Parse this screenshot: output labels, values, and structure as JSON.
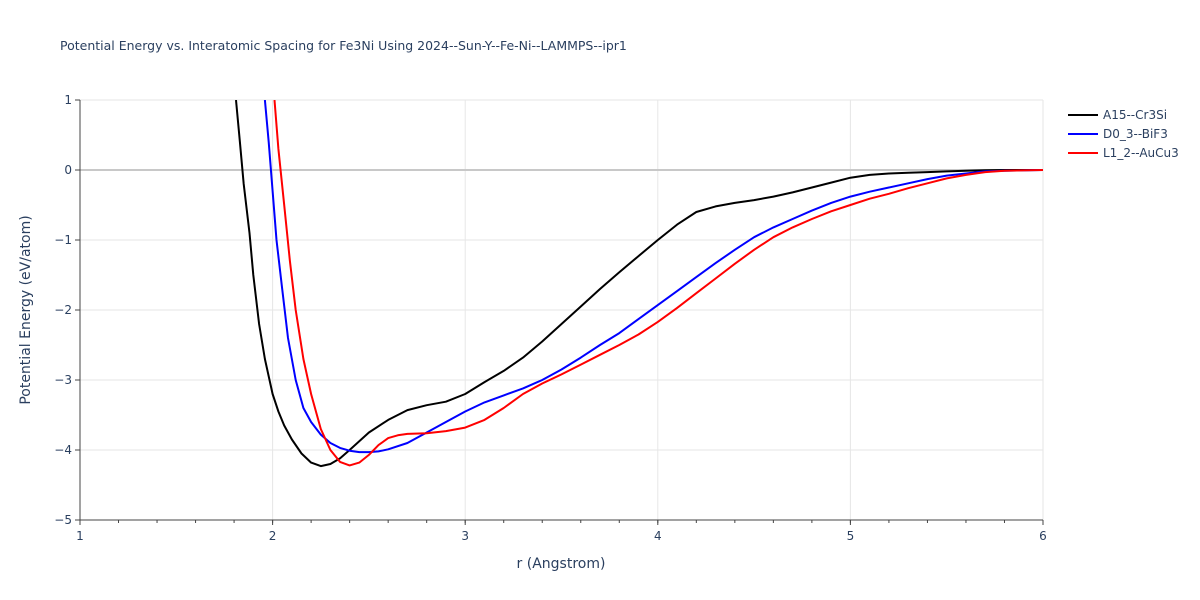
{
  "chart_data": {
    "type": "line",
    "title": "Potential Energy vs. Interatomic Spacing for Fe3Ni Using 2024--Sun-Y--Fe-Ni--LAMMPS--ipr1",
    "xlabel": "r (Angstrom)",
    "ylabel": "Potential Energy (eV/atom)",
    "xlim": [
      1,
      6
    ],
    "ylim": [
      -5,
      1
    ],
    "x_ticks": [
      1,
      2,
      3,
      4,
      5,
      6
    ],
    "x_tick_labels": [
      "1",
      "2",
      "3",
      "4",
      "5",
      "6"
    ],
    "y_ticks": [
      -5,
      -4,
      -3,
      -2,
      -1,
      0,
      1
    ],
    "y_tick_labels": [
      "−5",
      "−4",
      "−3",
      "−2",
      "−1",
      "0",
      "1"
    ],
    "grid": true,
    "legend_position": "top-right",
    "series": [
      {
        "name": "A15--Cr3Si",
        "color": "#000000",
        "points": [
          [
            1.81,
            1.0
          ],
          [
            1.83,
            0.4
          ],
          [
            1.85,
            -0.2
          ],
          [
            1.88,
            -0.9
          ],
          [
            1.9,
            -1.5
          ],
          [
            1.93,
            -2.2
          ],
          [
            1.96,
            -2.7
          ],
          [
            2.0,
            -3.2
          ],
          [
            2.03,
            -3.45
          ],
          [
            2.06,
            -3.65
          ],
          [
            2.1,
            -3.85
          ],
          [
            2.15,
            -4.05
          ],
          [
            2.2,
            -4.18
          ],
          [
            2.25,
            -4.23
          ],
          [
            2.3,
            -4.2
          ],
          [
            2.35,
            -4.12
          ],
          [
            2.4,
            -4.0
          ],
          [
            2.5,
            -3.75
          ],
          [
            2.6,
            -3.57
          ],
          [
            2.7,
            -3.43
          ],
          [
            2.8,
            -3.36
          ],
          [
            2.9,
            -3.31
          ],
          [
            3.0,
            -3.2
          ],
          [
            3.1,
            -3.03
          ],
          [
            3.2,
            -2.87
          ],
          [
            3.3,
            -2.68
          ],
          [
            3.4,
            -2.45
          ],
          [
            3.5,
            -2.2
          ],
          [
            3.6,
            -1.95
          ],
          [
            3.7,
            -1.7
          ],
          [
            3.8,
            -1.46
          ],
          [
            3.9,
            -1.23
          ],
          [
            4.0,
            -1.0
          ],
          [
            4.1,
            -0.78
          ],
          [
            4.2,
            -0.6
          ],
          [
            4.3,
            -0.52
          ],
          [
            4.4,
            -0.47
          ],
          [
            4.5,
            -0.43
          ],
          [
            4.6,
            -0.38
          ],
          [
            4.7,
            -0.32
          ],
          [
            4.8,
            -0.25
          ],
          [
            4.9,
            -0.18
          ],
          [
            5.0,
            -0.11
          ],
          [
            5.1,
            -0.07
          ],
          [
            5.2,
            -0.05
          ],
          [
            5.3,
            -0.04
          ],
          [
            5.4,
            -0.03
          ],
          [
            5.5,
            -0.02
          ],
          [
            5.6,
            -0.01
          ],
          [
            5.7,
            -0.005
          ],
          [
            5.8,
            0.0
          ],
          [
            6.0,
            0.0
          ]
        ]
      },
      {
        "name": "D0_3--BiF3",
        "color": "#0000ff",
        "points": [
          [
            1.96,
            1.0
          ],
          [
            1.98,
            0.4
          ],
          [
            2.0,
            -0.3
          ],
          [
            2.02,
            -1.0
          ],
          [
            2.05,
            -1.7
          ],
          [
            2.08,
            -2.4
          ],
          [
            2.12,
            -3.0
          ],
          [
            2.16,
            -3.4
          ],
          [
            2.2,
            -3.6
          ],
          [
            2.25,
            -3.78
          ],
          [
            2.3,
            -3.9
          ],
          [
            2.35,
            -3.97
          ],
          [
            2.4,
            -4.01
          ],
          [
            2.45,
            -4.03
          ],
          [
            2.5,
            -4.03
          ],
          [
            2.55,
            -4.02
          ],
          [
            2.6,
            -3.99
          ],
          [
            2.7,
            -3.9
          ],
          [
            2.8,
            -3.75
          ],
          [
            2.9,
            -3.6
          ],
          [
            3.0,
            -3.45
          ],
          [
            3.1,
            -3.32
          ],
          [
            3.2,
            -3.22
          ],
          [
            3.3,
            -3.12
          ],
          [
            3.4,
            -3.0
          ],
          [
            3.5,
            -2.85
          ],
          [
            3.6,
            -2.68
          ],
          [
            3.7,
            -2.5
          ],
          [
            3.8,
            -2.33
          ],
          [
            3.9,
            -2.13
          ],
          [
            4.0,
            -1.93
          ],
          [
            4.1,
            -1.73
          ],
          [
            4.2,
            -1.53
          ],
          [
            4.3,
            -1.33
          ],
          [
            4.4,
            -1.14
          ],
          [
            4.5,
            -0.96
          ],
          [
            4.6,
            -0.82
          ],
          [
            4.7,
            -0.7
          ],
          [
            4.8,
            -0.58
          ],
          [
            4.9,
            -0.47
          ],
          [
            5.0,
            -0.38
          ],
          [
            5.1,
            -0.31
          ],
          [
            5.2,
            -0.25
          ],
          [
            5.3,
            -0.19
          ],
          [
            5.4,
            -0.13
          ],
          [
            5.5,
            -0.08
          ],
          [
            5.6,
            -0.05
          ],
          [
            5.7,
            -0.02
          ],
          [
            5.8,
            -0.01
          ],
          [
            6.0,
            0.0
          ]
        ]
      },
      {
        "name": "L1_2--AuCu3",
        "color": "#ff0000",
        "points": [
          [
            2.01,
            1.0
          ],
          [
            2.03,
            0.3
          ],
          [
            2.06,
            -0.5
          ],
          [
            2.09,
            -1.3
          ],
          [
            2.12,
            -2.0
          ],
          [
            2.16,
            -2.7
          ],
          [
            2.2,
            -3.2
          ],
          [
            2.25,
            -3.7
          ],
          [
            2.3,
            -4.0
          ],
          [
            2.35,
            -4.17
          ],
          [
            2.4,
            -4.22
          ],
          [
            2.45,
            -4.18
          ],
          [
            2.5,
            -4.07
          ],
          [
            2.55,
            -3.93
          ],
          [
            2.6,
            -3.83
          ],
          [
            2.65,
            -3.79
          ],
          [
            2.7,
            -3.77
          ],
          [
            2.8,
            -3.76
          ],
          [
            2.9,
            -3.73
          ],
          [
            3.0,
            -3.68
          ],
          [
            3.1,
            -3.57
          ],
          [
            3.2,
            -3.4
          ],
          [
            3.3,
            -3.2
          ],
          [
            3.4,
            -3.05
          ],
          [
            3.5,
            -2.92
          ],
          [
            3.6,
            -2.78
          ],
          [
            3.7,
            -2.64
          ],
          [
            3.8,
            -2.5
          ],
          [
            3.9,
            -2.35
          ],
          [
            4.0,
            -2.17
          ],
          [
            4.1,
            -1.97
          ],
          [
            4.2,
            -1.76
          ],
          [
            4.3,
            -1.55
          ],
          [
            4.4,
            -1.34
          ],
          [
            4.5,
            -1.14
          ],
          [
            4.6,
            -0.96
          ],
          [
            4.7,
            -0.82
          ],
          [
            4.8,
            -0.7
          ],
          [
            4.9,
            -0.59
          ],
          [
            5.0,
            -0.5
          ],
          [
            5.1,
            -0.41
          ],
          [
            5.2,
            -0.34
          ],
          [
            5.3,
            -0.26
          ],
          [
            5.4,
            -0.19
          ],
          [
            5.5,
            -0.12
          ],
          [
            5.6,
            -0.07
          ],
          [
            5.7,
            -0.03
          ],
          [
            5.8,
            -0.01
          ],
          [
            6.0,
            0.0
          ]
        ]
      }
    ]
  }
}
